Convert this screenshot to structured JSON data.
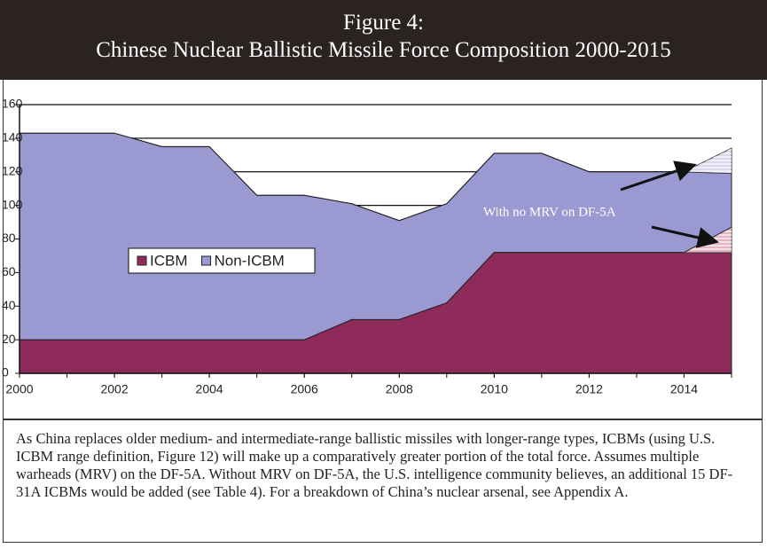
{
  "figure": {
    "label": "Figure 4:",
    "title": "Chinese Nuclear Ballistic Missile Force Composition 2000-2015"
  },
  "chart_data": {
    "type": "area",
    "x": [
      2000,
      2001,
      2002,
      2003,
      2004,
      2005,
      2006,
      2007,
      2008,
      2009,
      2010,
      2011,
      2012,
      2013,
      2014,
      2015
    ],
    "series": [
      {
        "name": "ICBM",
        "color": "#8e2b5b",
        "values": [
          20,
          20,
          20,
          20,
          20,
          20,
          20,
          32,
          32,
          42,
          72,
          72,
          72,
          72,
          72,
          72
        ]
      },
      {
        "color": "#d88aa0",
        "hatched": true,
        "values": [
          0,
          0,
          0,
          0,
          0,
          0,
          0,
          0,
          0,
          0,
          0,
          0,
          0,
          0,
          0,
          15
        ]
      },
      {
        "name": "Non-ICBM",
        "color": "#9b99d1",
        "values": [
          123,
          123,
          123,
          115,
          115,
          86,
          86,
          69,
          59,
          59,
          59,
          59,
          48,
          48,
          48,
          32
        ]
      },
      {
        "color": "#c4c3e6",
        "hatched": true,
        "values": [
          0,
          0,
          0,
          0,
          0,
          0,
          0,
          0,
          0,
          0,
          0,
          0,
          0,
          0,
          0,
          15
        ]
      }
    ],
    "xlim": [
      2000,
      2015
    ],
    "xticks": [
      2000,
      2002,
      2004,
      2006,
      2008,
      2010,
      2012,
      2014
    ],
    "ylim": [
      0,
      160
    ],
    "yticks": [
      0,
      20,
      40,
      60,
      80,
      100,
      120,
      140,
      160
    ],
    "grid": true,
    "annotation": "With no MRV on DF-5A"
  },
  "caption": "As China replaces older medium- and intermediate-range ballistic missiles with longer-range types, ICBMs (using U.S. ICBM range definition, Figure 12) will make up a comparatively greater portion of the total force. Assumes multiple warheads (MRV) on the DF-5A. Without MRV on DF-5A, the U.S. intelligence community believes, an additional 15 DF-31A ICBMs would be added (see Table 4). For a breakdown of China’s nuclear arsenal, see Appendix A."
}
